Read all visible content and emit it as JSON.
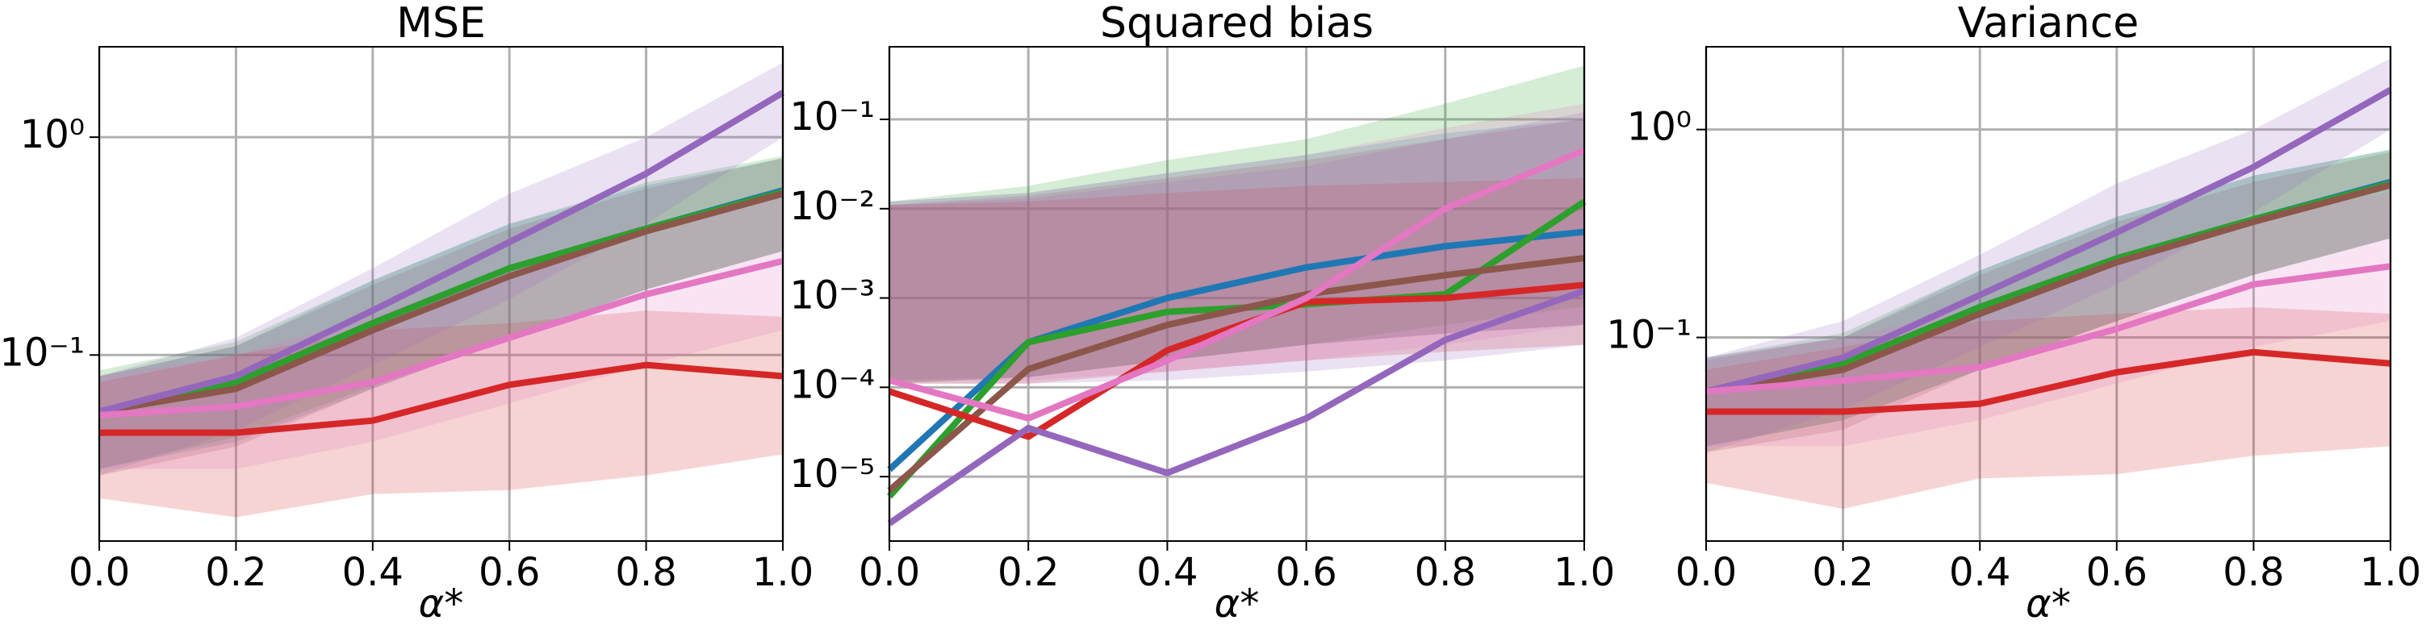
{
  "chart_data": [
    {
      "type": "line",
      "title": "MSE",
      "xlabel": "α*",
      "log_y": true,
      "grid": true,
      "x": [
        0,
        0.2,
        0.4,
        0.6,
        0.8,
        1.0
      ],
      "xlim": [
        0,
        1
      ],
      "xticks": [
        {
          "value": 0,
          "label": "0.0"
        },
        0.2,
        0.4,
        0.6,
        0.8,
        {
          "value": 1,
          "label": "1.0"
        }
      ],
      "ylim": [
        0.014,
        2.6
      ],
      "yticks": [
        {
          "value": 0.1,
          "label": "10⁻¹"
        },
        {
          "value": 1,
          "label": "10⁰"
        }
      ],
      "series": [
        {
          "color": "#1f77b4",
          "values": [
            0.055,
            0.075,
            0.14,
            0.25,
            0.38,
            0.57
          ],
          "lower": [
            0.03,
            0.04,
            0.07,
            0.12,
            0.2,
            0.3
          ],
          "upper": [
            0.08,
            0.11,
            0.22,
            0.4,
            0.6,
            0.8
          ]
        },
        {
          "color": "#2ca02c",
          "values": [
            0.055,
            0.075,
            0.14,
            0.25,
            0.38,
            0.56
          ],
          "lower": [
            0.03,
            0.042,
            0.072,
            0.12,
            0.2,
            0.3
          ],
          "upper": [
            0.085,
            0.115,
            0.22,
            0.4,
            0.62,
            0.82
          ]
        },
        {
          "color": "#8c564b",
          "values": [
            0.055,
            0.07,
            0.13,
            0.23,
            0.37,
            0.55
          ],
          "lower": [
            0.028,
            0.038,
            0.07,
            0.12,
            0.2,
            0.3
          ],
          "upper": [
            0.08,
            0.11,
            0.21,
            0.38,
            0.58,
            0.8
          ]
        },
        {
          "color": "#d62728",
          "values": [
            0.044,
            0.044,
            0.05,
            0.073,
            0.09,
            0.08
          ],
          "lower": [
            0.022,
            0.018,
            0.023,
            0.024,
            0.028,
            0.035
          ],
          "upper": [
            0.075,
            0.1,
            0.13,
            0.14,
            0.16,
            0.15
          ]
        },
        {
          "color": "#9467bd",
          "values": [
            0.055,
            0.08,
            0.16,
            0.33,
            0.68,
            1.6
          ],
          "lower": [
            0.028,
            0.045,
            0.09,
            0.18,
            0.4,
            1.0
          ],
          "upper": [
            0.08,
            0.12,
            0.25,
            0.55,
            1.0,
            2.2
          ]
        },
        {
          "color": "#e377c2",
          "values": [
            0.053,
            0.058,
            0.075,
            0.12,
            0.19,
            0.27
          ],
          "lower": [
            0.03,
            0.03,
            0.04,
            0.06,
            0.09,
            0.13
          ],
          "upper": [
            0.08,
            0.1,
            0.15,
            0.25,
            0.4,
            0.55
          ]
        }
      ]
    },
    {
      "type": "line",
      "title": "Squared bias",
      "xlabel": "α*",
      "log_y": true,
      "grid": true,
      "x": [
        0,
        0.2,
        0.4,
        0.6,
        0.8,
        1.0
      ],
      "xlim": [
        0,
        1
      ],
      "xticks": [
        {
          "value": 0,
          "label": "0.0"
        },
        0.2,
        0.4,
        0.6,
        0.8,
        {
          "value": 1,
          "label": "1.0"
        }
      ],
      "ylim": [
        1.9e-06,
        0.65
      ],
      "yticks": [
        {
          "value": 1e-05,
          "label": "10⁻⁵"
        },
        {
          "value": 0.0001,
          "label": "10⁻⁴"
        },
        {
          "value": 0.001,
          "label": "10⁻³"
        },
        {
          "value": 0.01,
          "label": "10⁻²"
        },
        {
          "value": 0.1,
          "label": "10⁻¹"
        }
      ],
      "series": [
        {
          "color": "#1f77b4",
          "values": [
            1.2e-05,
            0.00032,
            0.001,
            0.0022,
            0.0038,
            0.0055
          ],
          "lower": [
            0.00012,
            0.00013,
            0.0002,
            0.0003,
            0.0004,
            0.0005
          ],
          "upper": [
            0.012,
            0.015,
            0.025,
            0.04,
            0.07,
            0.1
          ]
        },
        {
          "color": "#2ca02c",
          "values": [
            6e-06,
            0.00032,
            0.0007,
            0.00085,
            0.0011,
            0.012
          ],
          "lower": [
            0.00011,
            0.00013,
            0.0002,
            0.0003,
            0.0005,
            0.0008
          ],
          "upper": [
            0.012,
            0.018,
            0.035,
            0.06,
            0.15,
            0.4
          ]
        },
        {
          "color": "#8c564b",
          "values": [
            7e-06,
            0.00016,
            0.0005,
            0.0011,
            0.0018,
            0.0028
          ],
          "lower": [
            0.00011,
            0.00013,
            0.0002,
            0.0003,
            0.0004,
            0.0005
          ],
          "upper": [
            0.011,
            0.014,
            0.022,
            0.035,
            0.06,
            0.1
          ]
        },
        {
          "color": "#d62728",
          "values": [
            9e-05,
            2.8e-05,
            0.00026,
            0.0009,
            0.001,
            0.0014
          ],
          "lower": [
            0.00011,
            0.00011,
            0.00015,
            0.0002,
            0.00025,
            0.0003
          ],
          "upper": [
            0.011,
            0.012,
            0.015,
            0.018,
            0.02,
            0.022
          ]
        },
        {
          "color": "#9467bd",
          "values": [
            3e-06,
            3.5e-05,
            1.1e-05,
            4.5e-05,
            0.00034,
            0.0012
          ],
          "lower": [
            0.00011,
            0.00011,
            0.00012,
            0.00015,
            0.0002,
            0.0003
          ],
          "upper": [
            0.011,
            0.013,
            0.02,
            0.03,
            0.06,
            0.12
          ]
        },
        {
          "color": "#e377c2",
          "values": [
            0.00012,
            4.5e-05,
            0.0002,
            0.001,
            0.01,
            0.045
          ],
          "lower": [
            0.00012,
            0.00012,
            0.00015,
            0.0002,
            0.0003,
            0.0005
          ],
          "upper": [
            0.012,
            0.015,
            0.025,
            0.04,
            0.08,
            0.15
          ]
        }
      ]
    },
    {
      "type": "line",
      "title": "Variance",
      "xlabel": "α*",
      "log_y": true,
      "grid": true,
      "x": [
        0,
        0.2,
        0.4,
        0.6,
        0.8,
        1.0
      ],
      "xlim": [
        0,
        1
      ],
      "xticks": [
        {
          "value": 0,
          "label": "0.0"
        },
        0.2,
        0.4,
        0.6,
        0.8,
        {
          "value": 1,
          "label": "1.0"
        }
      ],
      "ylim": [
        0.0105,
        2.5
      ],
      "yticks": [
        {
          "value": 0.1,
          "label": "10⁻¹"
        },
        {
          "value": 1,
          "label": "10⁰"
        }
      ],
      "series": [
        {
          "color": "#1f77b4",
          "values": [
            0.055,
            0.075,
            0.14,
            0.24,
            0.37,
            0.56
          ],
          "lower": [
            0.03,
            0.04,
            0.07,
            0.12,
            0.2,
            0.3
          ],
          "upper": [
            0.08,
            0.1,
            0.21,
            0.38,
            0.6,
            0.8
          ]
        },
        {
          "color": "#2ca02c",
          "values": [
            0.055,
            0.075,
            0.14,
            0.24,
            0.37,
            0.55
          ],
          "lower": [
            0.03,
            0.04,
            0.07,
            0.12,
            0.2,
            0.3
          ],
          "upper": [
            0.08,
            0.105,
            0.21,
            0.38,
            0.6,
            0.8
          ]
        },
        {
          "color": "#8c564b",
          "values": [
            0.055,
            0.07,
            0.13,
            0.23,
            0.36,
            0.54
          ],
          "lower": [
            0.028,
            0.036,
            0.07,
            0.12,
            0.2,
            0.3
          ],
          "upper": [
            0.078,
            0.1,
            0.2,
            0.36,
            0.56,
            0.78
          ]
        },
        {
          "color": "#d62728",
          "values": [
            0.044,
            0.044,
            0.048,
            0.068,
            0.085,
            0.075
          ],
          "lower": [
            0.02,
            0.015,
            0.021,
            0.022,
            0.027,
            0.03
          ],
          "upper": [
            0.07,
            0.09,
            0.12,
            0.13,
            0.14,
            0.13
          ]
        },
        {
          "color": "#9467bd",
          "values": [
            0.055,
            0.08,
            0.16,
            0.32,
            0.66,
            1.55
          ],
          "lower": [
            0.028,
            0.045,
            0.09,
            0.18,
            0.4,
            1.0
          ],
          "upper": [
            0.08,
            0.12,
            0.25,
            0.55,
            1.0,
            2.2
          ]
        },
        {
          "color": "#e377c2",
          "values": [
            0.055,
            0.062,
            0.072,
            0.11,
            0.18,
            0.22
          ],
          "lower": [
            0.03,
            0.03,
            0.04,
            0.06,
            0.09,
            0.12
          ],
          "upper": [
            0.08,
            0.1,
            0.14,
            0.24,
            0.38,
            0.5
          ]
        }
      ]
    }
  ]
}
